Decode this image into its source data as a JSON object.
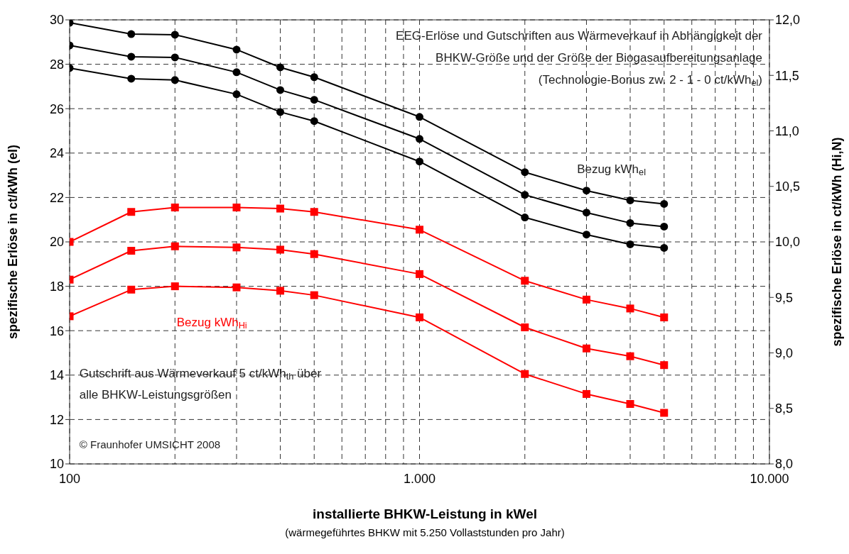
{
  "chart_data": {
    "type": "line",
    "title": "EEG-Erlöse und Gutschriften aus Wärmeverkauf in Abhängigkeit der\nBHKW-Größe und der Größe der Biogasaufbereitungsanlage\n(Technologie-Bonus zw. 2 - 1 - 0 ct/kWh$_{el}$)",
    "subtitle": "(wärmegeführtes BHKW mit 5.250 Vollaststunden pro Jahr)",
    "xlabel": "installierte BHKW-Leistung in kWel",
    "ylabel": "spezifische Erlöse in ct/kWh (el)",
    "y2label": "spezifische Erlöse in ct/kWh (Hi,N)",
    "x": [
      100,
      150,
      200,
      300,
      400,
      500,
      1000,
      2000,
      3000,
      4000,
      5000
    ],
    "series": [
      {
        "color": "#000000",
        "marker": "circle",
        "values": [
          29.87,
          29.36,
          29.33,
          28.66,
          27.86,
          27.42,
          25.63,
          23.14,
          22.31,
          21.87,
          21.71
        ]
      },
      {
        "color": "#000000",
        "marker": "circle",
        "values": [
          28.85,
          28.34,
          28.31,
          27.64,
          26.84,
          26.4,
          24.64,
          22.12,
          21.32,
          20.85,
          20.69
        ]
      },
      {
        "color": "#000000",
        "marker": "circle",
        "values": [
          27.83,
          27.35,
          27.29,
          26.65,
          25.85,
          25.44,
          23.62,
          21.1,
          20.33,
          19.89,
          19.73
        ]
      },
      {
        "color": "#ff0000",
        "marker": "square",
        "axis": "y2",
        "values": [
          10.0,
          10.27,
          10.31,
          10.31,
          10.3,
          10.27,
          10.11,
          9.65,
          9.48,
          9.4,
          9.32
        ]
      },
      {
        "color": "#ff0000",
        "marker": "square",
        "axis": "y2",
        "values": [
          9.66,
          9.92,
          9.96,
          9.95,
          9.93,
          9.89,
          9.71,
          9.23,
          9.04,
          8.97,
          8.89
        ]
      },
      {
        "color": "#ff0000",
        "marker": "square",
        "axis": "y2",
        "values": [
          9.33,
          9.57,
          9.6,
          9.59,
          9.56,
          9.52,
          9.32,
          8.81,
          8.63,
          8.54,
          8.46
        ]
      }
    ],
    "log": "x",
    "xlim": [
      100,
      10000
    ],
    "xticks": [
      {
        "value": 100,
        "label": "100"
      },
      {
        "value": 200,
        "label": null
      },
      {
        "value": 300,
        "label": null
      },
      {
        "value": 400,
        "label": null
      },
      {
        "value": 500,
        "label": null
      },
      {
        "value": 600,
        "label": null
      },
      {
        "value": 700,
        "label": null
      },
      {
        "value": 800,
        "label": null
      },
      {
        "value": 900,
        "label": null
      },
      {
        "value": 1000,
        "label": "1.000"
      },
      {
        "value": 2000,
        "label": null
      },
      {
        "value": 3000,
        "label": null
      },
      {
        "value": 4000,
        "label": null
      },
      {
        "value": 5000,
        "label": null
      },
      {
        "value": 6000,
        "label": null
      },
      {
        "value": 7000,
        "label": null
      },
      {
        "value": 8000,
        "label": null
      },
      {
        "value": 9000,
        "label": null
      },
      {
        "value": 10000,
        "label": "10.000"
      }
    ],
    "ylim": [
      10,
      30
    ],
    "yticks": [
      10,
      12,
      14,
      16,
      18,
      20,
      22,
      24,
      26,
      28,
      30
    ],
    "y2lim": [
      8,
      12
    ],
    "y2ticks": [
      {
        "value": 8,
        "label": "8,0"
      },
      {
        "value": 8.5,
        "label": "8,5"
      },
      {
        "value": 9,
        "label": "9,0"
      },
      {
        "value": 9.5,
        "label": "9,5"
      },
      {
        "value": 10,
        "label": "10,0"
      },
      {
        "value": 10.5,
        "label": "10,5"
      },
      {
        "value": 11,
        "label": "11,0"
      },
      {
        "value": 11.5,
        "label": "11,5"
      },
      {
        "value": 12,
        "label": "12,0"
      }
    ],
    "grid": true,
    "line_style": "solid",
    "annotations": [
      "Bezug kWh$_{el}$",
      "Bezug kWh$_{Hi}$",
      "Gutschrift aus Wärmeverkauf 5 ct/kWh$_{th}$ über\nalle BHKW-Leistungsgrößen",
      "© Fraunhofer UMSICHT 2008"
    ]
  }
}
